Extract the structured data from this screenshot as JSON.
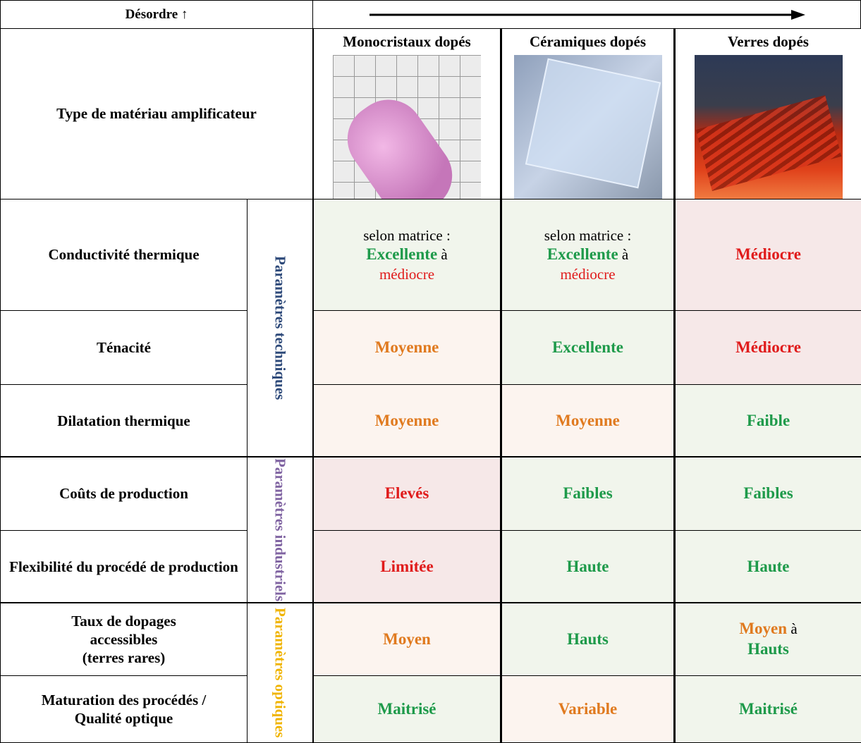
{
  "header": {
    "corner": "Désordre ↑"
  },
  "columns": [
    "Monocristaux dopés",
    "Céramiques dopés",
    "Verres dopés"
  ],
  "material_row": "Type de matériau amplificateur",
  "groups": [
    {
      "label": "Paramètres techniques",
      "color": "#2e4a7a",
      "rows": [
        0,
        2
      ]
    },
    {
      "label": "Paramètres industriels",
      "color": "#8064a2",
      "rows": [
        3,
        4
      ]
    },
    {
      "label": "Paramètres optiques",
      "color": "#f0b400",
      "rows": [
        5,
        6
      ]
    }
  ],
  "rows": [
    {
      "label": "Conductivité thermique",
      "cells": [
        {
          "background": "#f1f5ec",
          "lines": [
            [
              {
                "text": "selon matrice :",
                "color": "#000000",
                "bold": false
              }
            ],
            [
              {
                "text": "Excellente",
                "color": "#1e9a4a",
                "bold": true
              },
              {
                "text": " à",
                "color": "#000000",
                "bold": false
              }
            ],
            [
              {
                "text": "médiocre",
                "color": "#e01b1b",
                "bold": false
              }
            ]
          ]
        },
        {
          "background": "#f1f5ec",
          "lines": [
            [
              {
                "text": "selon matrice :",
                "color": "#000000",
                "bold": false
              }
            ],
            [
              {
                "text": "Excellente",
                "color": "#1e9a4a",
                "bold": true
              },
              {
                "text": " à",
                "color": "#000000",
                "bold": false
              }
            ],
            [
              {
                "text": "médiocre",
                "color": "#e01b1b",
                "bold": false
              }
            ]
          ]
        },
        {
          "background": "#f6e8e8",
          "lines": [
            [
              {
                "text": "Médiocre",
                "color": "#e01b1b",
                "bold": true
              }
            ]
          ]
        }
      ]
    },
    {
      "label": "Ténacité",
      "cells": [
        {
          "background": "#fcf4ef",
          "lines": [
            [
              {
                "text": "Moyenne",
                "color": "#e07a1f",
                "bold": true
              }
            ]
          ]
        },
        {
          "background": "#f1f5ec",
          "lines": [
            [
              {
                "text": "Excellente",
                "color": "#1e9a4a",
                "bold": true
              }
            ]
          ]
        },
        {
          "background": "#f6e8e8",
          "lines": [
            [
              {
                "text": "Médiocre",
                "color": "#e01b1b",
                "bold": true
              }
            ]
          ]
        }
      ]
    },
    {
      "label": "Dilatation thermique",
      "cells": [
        {
          "background": "#fcf4ef",
          "lines": [
            [
              {
                "text": "Moyenne",
                "color": "#e07a1f",
                "bold": true
              }
            ]
          ]
        },
        {
          "background": "#fcf4ef",
          "lines": [
            [
              {
                "text": "Moyenne",
                "color": "#e07a1f",
                "bold": true
              }
            ]
          ]
        },
        {
          "background": "#f1f5ec",
          "lines": [
            [
              {
                "text": "Faible",
                "color": "#1e9a4a",
                "bold": true
              }
            ]
          ]
        }
      ]
    },
    {
      "label": "Coûts de production",
      "cells": [
        {
          "background": "#f6e8e8",
          "lines": [
            [
              {
                "text": "Elevés",
                "color": "#e01b1b",
                "bold": true
              }
            ]
          ]
        },
        {
          "background": "#f1f5ec",
          "lines": [
            [
              {
                "text": "Faibles",
                "color": "#1e9a4a",
                "bold": true
              }
            ]
          ]
        },
        {
          "background": "#f1f5ec",
          "lines": [
            [
              {
                "text": "Faibles",
                "color": "#1e9a4a",
                "bold": true
              }
            ]
          ]
        }
      ]
    },
    {
      "label": "Flexibilité du procédé de production",
      "cells": [
        {
          "background": "#f6e8e8",
          "lines": [
            [
              {
                "text": "Limitée",
                "color": "#e01b1b",
                "bold": true
              }
            ]
          ]
        },
        {
          "background": "#f1f5ec",
          "lines": [
            [
              {
                "text": "Haute",
                "color": "#1e9a4a",
                "bold": true
              }
            ]
          ]
        },
        {
          "background": "#f1f5ec",
          "lines": [
            [
              {
                "text": "Haute",
                "color": "#1e9a4a",
                "bold": true
              }
            ]
          ]
        }
      ]
    },
    {
      "label": "Taux de dopages\naccessibles\n(terres rares)",
      "cells": [
        {
          "background": "#fcf4ef",
          "lines": [
            [
              {
                "text": "Moyen",
                "color": "#e07a1f",
                "bold": true
              }
            ]
          ]
        },
        {
          "background": "#f1f5ec",
          "lines": [
            [
              {
                "text": "Hauts",
                "color": "#1e9a4a",
                "bold": true
              }
            ]
          ]
        },
        {
          "background": "#f1f5ec",
          "lines": [
            [
              {
                "text": "Moyen",
                "color": "#e07a1f",
                "bold": true
              },
              {
                "text": " à",
                "color": "#000000",
                "bold": false
              }
            ],
            [
              {
                "text": "Hauts",
                "color": "#1e9a4a",
                "bold": true
              }
            ]
          ]
        }
      ]
    },
    {
      "label": "Maturation des procédés /\nQualité optique",
      "cells": [
        {
          "background": "#f1f5ec",
          "lines": [
            [
              {
                "text": "Maitrisé",
                "color": "#1e9a4a",
                "bold": true
              }
            ]
          ]
        },
        {
          "background": "#fcf4ef",
          "lines": [
            [
              {
                "text": "Variable",
                "color": "#e07a1f",
                "bold": true
              }
            ]
          ]
        },
        {
          "background": "#f1f5ec",
          "lines": [
            [
              {
                "text": "Maitrisé",
                "color": "#1e9a4a",
                "bold": true
              }
            ]
          ]
        }
      ]
    }
  ]
}
